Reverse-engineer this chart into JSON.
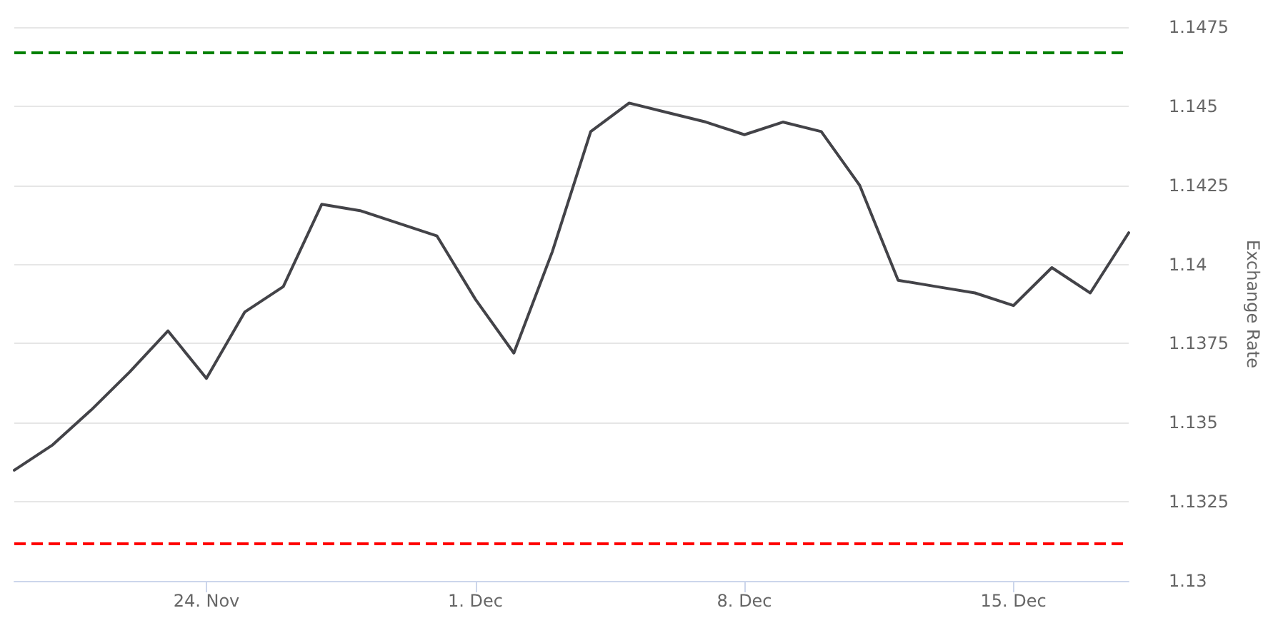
{
  "chart_data": {
    "type": "line",
    "ylabel": "Exchange Rate",
    "x": [
      "--11-19",
      "--11-20",
      "--11-21",
      "--11-22",
      "--11-23",
      "--11-24",
      "--11-25",
      "--11-26",
      "--11-27",
      "--11-28",
      "--11-29",
      "--11-30",
      "--12-01",
      "--12-02",
      "--12-03",
      "--12-04",
      "--12-05",
      "--12-06",
      "--12-07",
      "--12-08",
      "--12-09",
      "--12-10",
      "--12-11",
      "--12-12",
      "--12-13",
      "--12-14",
      "--12-15",
      "--12-16",
      "--12-17",
      "--12-18"
    ],
    "series": [
      {
        "color": "#434348",
        "values": [
          1.1335,
          1.1343,
          1.1354,
          1.1366,
          1.1379,
          1.1364,
          1.1385,
          1.1393,
          1.1419,
          1.1417,
          1.1413,
          1.1409,
          1.1389,
          1.1372,
          1.1404,
          1.1442,
          1.1451,
          1.1448,
          1.1445,
          1.1441,
          1.1445,
          1.1442,
          1.1425,
          1.1395,
          1.1393,
          1.1391,
          1.1387,
          1.1399,
          1.1391,
          1.141
        ]
      }
    ],
    "xlim": [
      "--11-19",
      "--12-18"
    ],
    "xticks": [
      {
        "value": "--11-24",
        "label": "24. Nov"
      },
      {
        "value": "--12-01",
        "label": "1. Dec"
      },
      {
        "value": "--12-08",
        "label": "8. Dec"
      },
      {
        "value": "--12-15",
        "label": "15. Dec"
      }
    ],
    "ylim": [
      1.13,
      1.1475
    ],
    "yticks": [
      1.13,
      1.1325,
      1.135,
      1.1375,
      1.14,
      1.1425,
      1.145,
      1.1475
    ],
    "ref_lines": [
      {
        "axis": "y",
        "value": 1.1467,
        "color": "#008000",
        "line_style": "dashed"
      },
      {
        "axis": "y",
        "value": 1.1312,
        "color": "#ff0000",
        "line_style": "dashed"
      }
    ],
    "grid": "y",
    "marker": "none",
    "line_style": "solid"
  }
}
